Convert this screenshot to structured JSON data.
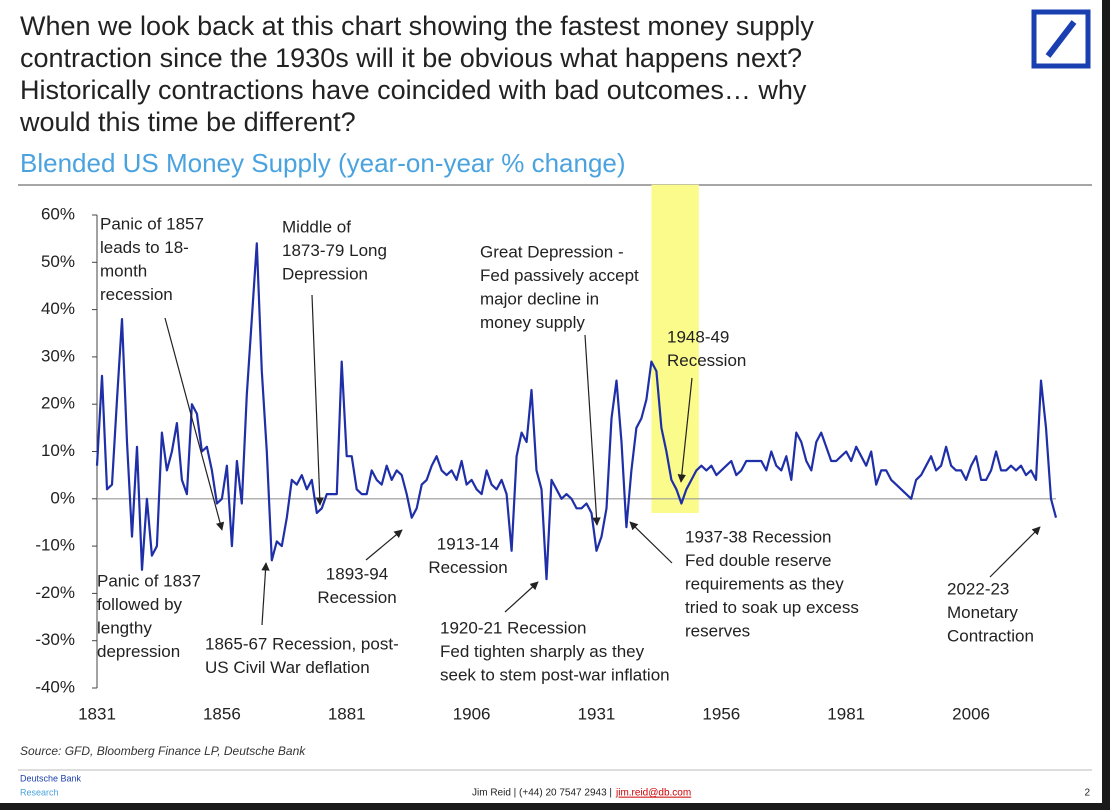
{
  "chart_data": {
    "type": "line",
    "title": [
      "When we look back at this chart showing the fastest money supply",
      "contraction since the 1930s will it be obvious what happens next?",
      "Historically contractions have coincided with bad outcomes… why",
      "would this time be different?"
    ],
    "subtitle": "Blended US Money Supply (year-on-year % change)",
    "x": [
      1831,
      1832,
      1833,
      1834,
      1835,
      1836,
      1837,
      1838,
      1839,
      1840,
      1841,
      1842,
      1843,
      1844,
      1845,
      1846,
      1847,
      1848,
      1849,
      1850,
      1851,
      1852,
      1853,
      1854,
      1855,
      1856,
      1857,
      1858,
      1859,
      1860,
      1861,
      1862,
      1863,
      1864,
      1865,
      1866,
      1867,
      1868,
      1869,
      1870,
      1871,
      1872,
      1873,
      1874,
      1875,
      1876,
      1877,
      1878,
      1879,
      1880,
      1881,
      1882,
      1883,
      1884,
      1885,
      1886,
      1887,
      1888,
      1889,
      1890,
      1891,
      1892,
      1893,
      1894,
      1895,
      1896,
      1897,
      1898,
      1899,
      1900,
      1901,
      1902,
      1903,
      1904,
      1905,
      1906,
      1907,
      1908,
      1909,
      1910,
      1911,
      1912,
      1913,
      1914,
      1915,
      1916,
      1917,
      1918,
      1919,
      1920,
      1921,
      1922,
      1923,
      1924,
      1925,
      1926,
      1927,
      1928,
      1929,
      1930,
      1931,
      1932,
      1933,
      1934,
      1935,
      1936,
      1937,
      1938,
      1939,
      1940,
      1941,
      1942,
      1943,
      1944,
      1945,
      1946,
      1947,
      1948,
      1949,
      1950,
      1951,
      1952,
      1953,
      1954,
      1955,
      1956,
      1957,
      1958,
      1959,
      1960,
      1961,
      1962,
      1963,
      1964,
      1965,
      1966,
      1967,
      1968,
      1969,
      1970,
      1971,
      1972,
      1973,
      1974,
      1975,
      1976,
      1977,
      1978,
      1979,
      1980,
      1981,
      1982,
      1983,
      1984,
      1985,
      1986,
      1987,
      1988,
      1989,
      1990,
      1991,
      1992,
      1993,
      1994,
      1995,
      1996,
      1997,
      1998,
      1999,
      2000,
      2001,
      2002,
      2003,
      2004,
      2005,
      2006,
      2007,
      2008,
      2009,
      2010,
      2011,
      2012,
      2013,
      2014,
      2015,
      2016,
      2017,
      2018,
      2019,
      2020,
      2021,
      2022,
      2023
    ],
    "series": [
      {
        "color": "#1f2fa8",
        "values": [
          7,
          26,
          2,
          3,
          21,
          38,
          12,
          -8,
          11,
          -15,
          0,
          -12,
          -10,
          14,
          6,
          10,
          16,
          4,
          1,
          20,
          18,
          10,
          11,
          6,
          -1,
          0,
          7,
          -10,
          8,
          -1,
          22,
          38,
          54,
          27,
          10,
          -13,
          -9,
          -10,
          -4,
          4,
          3,
          5,
          2,
          4,
          -3,
          -2,
          1,
          1,
          1,
          29,
          9,
          9,
          2,
          1,
          1,
          6,
          4,
          3,
          7,
          4,
          6,
          5,
          1,
          -4,
          -2,
          3,
          4,
          7,
          9,
          6,
          5,
          6,
          4,
          8,
          3,
          4,
          2,
          1,
          6,
          3,
          2,
          4,
          1,
          -11,
          9,
          14,
          12,
          23,
          6,
          2,
          -17,
          4,
          2,
          0,
          1,
          0,
          -2,
          -2,
          -1,
          -3,
          -11,
          -8,
          -2,
          17,
          25,
          12,
          -6,
          6,
          15,
          17,
          21,
          29,
          27,
          15,
          10,
          4,
          2,
          -1,
          2,
          4,
          6,
          7,
          6,
          7,
          5,
          6,
          7,
          8,
          5,
          6,
          8,
          8,
          8,
          8,
          6,
          10,
          7,
          6,
          9,
          4,
          14,
          12,
          8,
          6,
          12,
          14,
          11,
          8,
          8,
          9,
          10,
          8,
          11,
          9,
          7,
          10,
          3,
          6,
          6,
          4,
          3,
          2,
          1,
          0,
          4,
          5,
          7,
          9,
          6,
          7,
          11,
          7,
          6,
          6,
          4,
          7,
          9,
          4,
          4,
          6,
          10,
          6,
          6,
          7,
          6,
          7,
          5,
          6,
          4,
          25,
          15,
          0,
          -4
        ]
      }
    ],
    "xlim": [
      1831,
      2023
    ],
    "xticks": [
      1831,
      1856,
      1881,
      1906,
      1931,
      1956,
      1981,
      2006
    ],
    "ylim": [
      -40,
      60
    ],
    "yticks": [
      {
        "value": -40,
        "label": "-40%"
      },
      {
        "value": -30,
        "label": "-30%"
      },
      {
        "value": -20,
        "label": "-20%"
      },
      {
        "value": -10,
        "label": "-10%"
      },
      {
        "value": 0,
        "label": "0%"
      },
      {
        "value": 10,
        "label": "10%"
      },
      {
        "value": 20,
        "label": "20%"
      },
      {
        "value": 30,
        "label": "30%"
      },
      {
        "value": 40,
        "label": "40%"
      },
      {
        "value": 50,
        "label": "50%"
      },
      {
        "value": 60,
        "label": "60%"
      }
    ],
    "highlight": {
      "xlim": [
        1942,
        1951.5
      ],
      "ylim": [
        -3,
        66.4
      ],
      "color": "#fbfb8c"
    },
    "annotations": [
      [
        "Panic of 1857",
        "leads to 18-",
        "month",
        "recession"
      ],
      [
        "Middle of",
        "1873-79 Long",
        "Depression"
      ],
      [
        "Great Depression -",
        "Fed passively accept",
        "major decline in",
        "money supply"
      ],
      [
        "1948-49",
        "Recession"
      ],
      [
        "Panic of 1837",
        "followed by",
        "lengthy",
        "depression"
      ],
      [
        "1865-67 Recession, post-",
        "US Civil War deflation"
      ],
      [
        "1893-94",
        "Recession"
      ],
      [
        "1913-14",
        "Recession"
      ],
      [
        "1920-21 Recession",
        "Fed tighten sharply as they",
        "seek to stem post-war inflation"
      ],
      [
        "1937-38 Recession",
        "Fed double reserve",
        "requirements as they",
        "tried to soak up excess",
        "reserves"
      ],
      [
        "2022-23",
        "Monetary",
        "Contraction"
      ]
    ],
    "source": "Source: GFD, Bloomberg Finance LP, Deutsche Bank"
  },
  "footer": {
    "brand": "Deutsche Bank",
    "unit": "Research",
    "contact": "Jim Reid | (+44) 20 7547 2943 |",
    "email": "jim.reid@db.com",
    "page": "2"
  }
}
